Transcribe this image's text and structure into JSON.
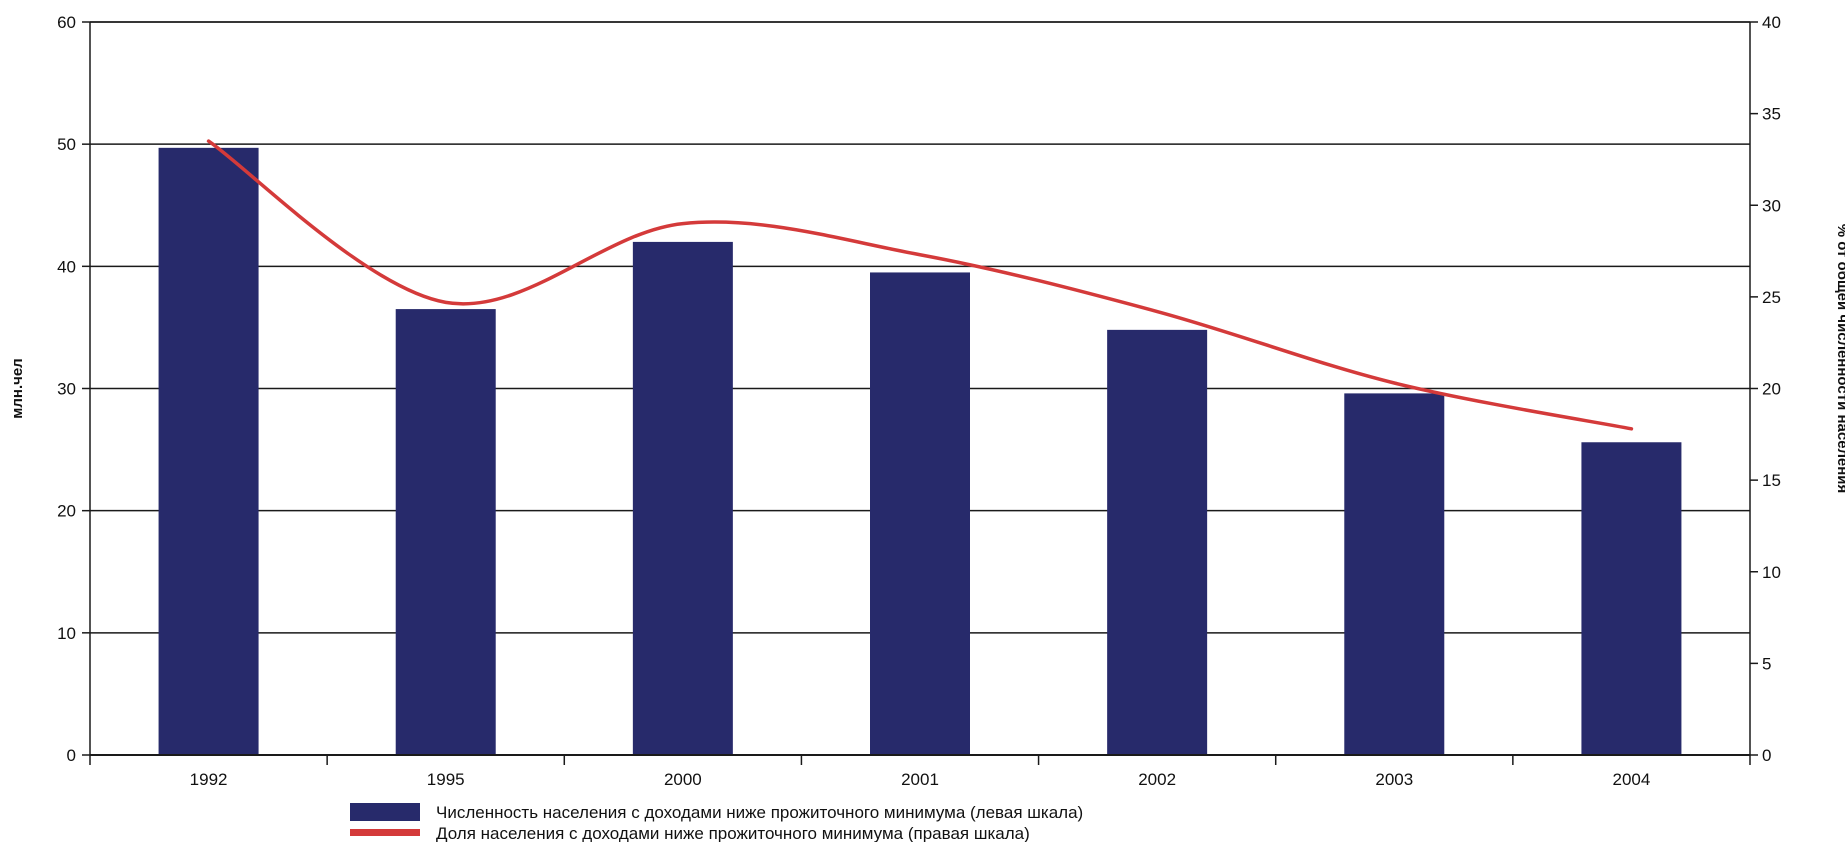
{
  "chart_data": {
    "type": "bar",
    "categories": [
      "1992",
      "1995",
      "2000",
      "2001",
      "2002",
      "2003",
      "2004"
    ],
    "series": [
      {
        "name": "Численность населения с доходами ниже прожиточного минимума (левая шкала)",
        "type": "bar",
        "axis": "left",
        "color": "#272a6b",
        "values": [
          49.7,
          36.5,
          42.0,
          39.5,
          34.8,
          29.6,
          25.6
        ]
      },
      {
        "name": "Доля населения с доходами ниже прожиточного минимума  (правая шкала)",
        "type": "line",
        "axis": "right",
        "color": "#d43a3a",
        "values": [
          33.5,
          24.7,
          29.0,
          27.3,
          24.2,
          20.3,
          17.8
        ]
      }
    ],
    "ylabel": "млн.чел",
    "y2label": "% от общей численности населения",
    "ylim": [
      0,
      60
    ],
    "y2lim": [
      0,
      40
    ],
    "yticks": [
      "0",
      "10",
      "20",
      "30",
      "40",
      "50",
      "60"
    ],
    "y2ticks": [
      "0",
      "5",
      "10",
      "15",
      "20",
      "25",
      "30",
      "35",
      "40"
    ],
    "grid": true,
    "legend_position": "bottom"
  }
}
